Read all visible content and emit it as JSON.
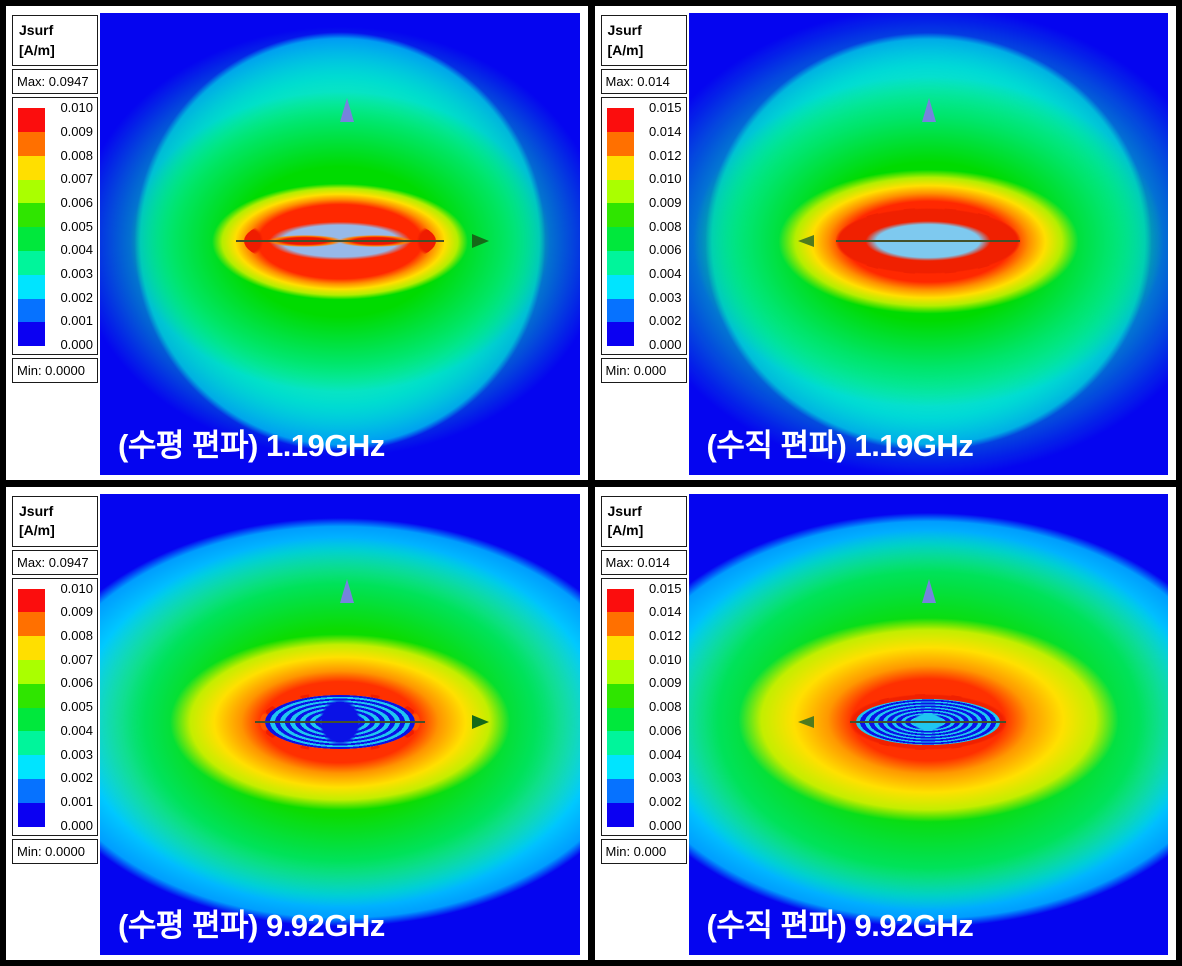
{
  "figure": {
    "colorbar_colors": [
      "#fb0d0d",
      "#ff7000",
      "#ffdf00",
      "#aaff00",
      "#2fe500",
      "#00e83c",
      "#00f59b",
      "#00e4ff",
      "#0672ff",
      "#0b00f2"
    ],
    "panels": [
      {
        "id": "top-left",
        "caption": "(수평 편파) 1.19GHz",
        "legend": {
          "title": "Jsurf [A/m]",
          "max_label": "Max: 0.0947",
          "min_label": "Min: 0.0000",
          "tick_labels": [
            "0.010",
            "0.009",
            "0.008",
            "0.007",
            "0.006",
            "0.005",
            "0.004",
            "0.003",
            "0.002",
            "0.001",
            "0.000"
          ]
        }
      },
      {
        "id": "top-right",
        "caption": "(수직 편파) 1.19GHz",
        "legend": {
          "title": "Jsurf\n[A/m]",
          "max_label": "Max: 0.014",
          "min_label": "Min: 0.000",
          "tick_labels": [
            "0.015",
            "0.014",
            "0.012",
            "0.010",
            "0.009",
            "0.008",
            "0.006",
            "0.004",
            "0.003",
            "0.002",
            "0.000"
          ]
        }
      },
      {
        "id": "bottom-left",
        "caption": "(수평 편파) 9.92GHz",
        "legend": {
          "title": "Jsurf [A/m]",
          "max_label": "Max: 0.0947",
          "min_label": "Min: 0.0000",
          "tick_labels": [
            "0.010",
            "0.009",
            "0.008",
            "0.007",
            "0.006",
            "0.005",
            "0.004",
            "0.003",
            "0.002",
            "0.001",
            "0.000"
          ]
        }
      },
      {
        "id": "bottom-right",
        "caption": "(수직 편파) 9.92GHz",
        "legend": {
          "title": "Jsurf\n[A/m]",
          "max_label": "Max: 0.014",
          "min_label": "Min: 0.000",
          "tick_labels": [
            "0.015",
            "0.014",
            "0.012",
            "0.010",
            "0.009",
            "0.008",
            "0.006",
            "0.004",
            "0.003",
            "0.002",
            "0.000"
          ]
        }
      }
    ]
  },
  "chart_data": [
    {
      "type": "heatmap",
      "quantity": "Jsurf",
      "unit": "A/m",
      "polarization": "수평 편파",
      "frequency": "1.19GHz",
      "caption": "(수평 편파) 1.19GHz",
      "max": 0.0947,
      "min": 0.0,
      "colorbar_ticks": [
        0.01,
        0.009,
        0.008,
        0.007,
        0.006,
        0.005,
        0.004,
        0.003,
        0.002,
        0.001,
        0.0
      ],
      "colorbar_colors": [
        "#fb0d0d",
        "#ff7000",
        "#ffdf00",
        "#aaff00",
        "#2fe500",
        "#00e83c",
        "#00f59b",
        "#00e4ff",
        "#0672ff",
        "#0b00f2"
      ],
      "legend_position": "top-left"
    },
    {
      "type": "heatmap",
      "quantity": "Jsurf",
      "unit": "A/m",
      "polarization": "수직 편파",
      "frequency": "1.19GHz",
      "caption": "(수직 편파) 1.19GHz",
      "max": 0.014,
      "min": 0.0,
      "colorbar_ticks": [
        0.015,
        0.014,
        0.012,
        0.01,
        0.009,
        0.008,
        0.006,
        0.004,
        0.003,
        0.002,
        0.0
      ],
      "colorbar_colors": [
        "#fb0d0d",
        "#ff7000",
        "#ffdf00",
        "#aaff00",
        "#2fe500",
        "#00e83c",
        "#00f59b",
        "#00e4ff",
        "#0672ff",
        "#0b00f2"
      ],
      "legend_position": "top-left"
    },
    {
      "type": "heatmap",
      "quantity": "Jsurf",
      "unit": "A/m",
      "polarization": "수평 편파",
      "frequency": "9.92GHz",
      "caption": "(수평 편파) 9.92GHz",
      "max": 0.0947,
      "min": 0.0,
      "colorbar_ticks": [
        0.01,
        0.009,
        0.008,
        0.007,
        0.006,
        0.005,
        0.004,
        0.003,
        0.002,
        0.001,
        0.0
      ],
      "colorbar_colors": [
        "#fb0d0d",
        "#ff7000",
        "#ffdf00",
        "#aaff00",
        "#2fe500",
        "#00e83c",
        "#00f59b",
        "#00e4ff",
        "#0672ff",
        "#0b00f2"
      ],
      "legend_position": "top-left"
    },
    {
      "type": "heatmap",
      "quantity": "Jsurf",
      "unit": "A/m",
      "polarization": "수직 편파",
      "frequency": "9.92GHz",
      "caption": "(수직 편파) 9.92GHz",
      "max": 0.014,
      "min": 0.0,
      "colorbar_ticks": [
        0.015,
        0.014,
        0.012,
        0.01,
        0.009,
        0.008,
        0.006,
        0.004,
        0.003,
        0.002,
        0.0
      ],
      "colorbar_colors": [
        "#fb0d0d",
        "#ff7000",
        "#ffdf00",
        "#aaff00",
        "#2fe500",
        "#00e83c",
        "#00f59b",
        "#00e4ff",
        "#0672ff",
        "#0b00f2"
      ],
      "legend_position": "top-left"
    }
  ]
}
